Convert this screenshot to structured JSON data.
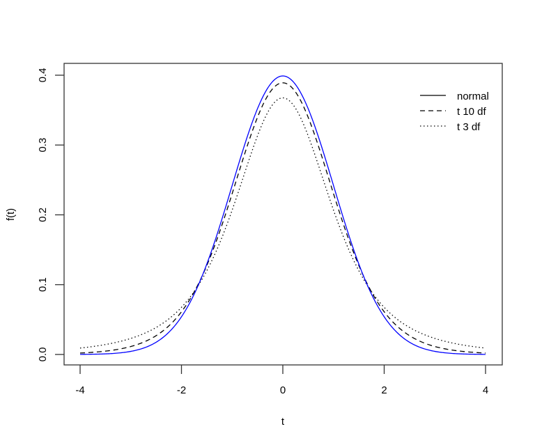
{
  "chart_data": {
    "type": "line",
    "title": "",
    "xlabel": "t",
    "ylabel": "f(t)",
    "xlim": [
      -4,
      4
    ],
    "ylim": [
      0,
      0.4
    ],
    "x_ticks": [
      "-4",
      "-2",
      "0",
      "2",
      "4"
    ],
    "y_ticks": [
      "0.0",
      "0.1",
      "0.2",
      "0.3",
      "0.4"
    ],
    "grid": false,
    "legend_position": "top-right",
    "x": [
      -4,
      -3.5,
      -3,
      -2.5,
      -2,
      -1.5,
      -1,
      -0.5,
      0,
      0.5,
      1,
      1.5,
      2,
      2.5,
      3,
      3.5,
      4
    ],
    "series": [
      {
        "name": "normal",
        "style": "solid",
        "color": "#0000ff",
        "values": [
          0.0001,
          0.0009,
          0.0044,
          0.0175,
          0.054,
          0.1295,
          0.242,
          0.3521,
          0.3989,
          0.3521,
          0.242,
          0.1295,
          0.054,
          0.0175,
          0.0044,
          0.0009,
          0.0001
        ]
      },
      {
        "name": "t 10 df",
        "style": "dashed",
        "color": "#000000",
        "values": [
          0.0025,
          0.0051,
          0.0114,
          0.0269,
          0.0611,
          0.1274,
          0.2304,
          0.3397,
          0.3891,
          0.3397,
          0.2304,
          0.1274,
          0.0611,
          0.0269,
          0.0114,
          0.0051,
          0.0025
        ]
      },
      {
        "name": "t 3 df",
        "style": "dotted",
        "color": "#000000",
        "values": [
          0.0092,
          0.0131,
          0.0229,
          0.0338,
          0.0675,
          0.1134,
          0.2067,
          0.3114,
          0.3676,
          0.3114,
          0.2067,
          0.1134,
          0.0675,
          0.0338,
          0.0229,
          0.0131,
          0.0092
        ]
      }
    ]
  },
  "legend": {
    "items": [
      {
        "label": "normal"
      },
      {
        "label": "t 10 df"
      },
      {
        "label": "t 3 df"
      }
    ]
  },
  "axes": {
    "xlabel": "t",
    "ylabel": "f(t)",
    "x_ticks": [
      "-4",
      "-2",
      "0",
      "2",
      "4"
    ],
    "y_ticks": [
      "0.0",
      "0.1",
      "0.2",
      "0.3",
      "0.4"
    ]
  }
}
